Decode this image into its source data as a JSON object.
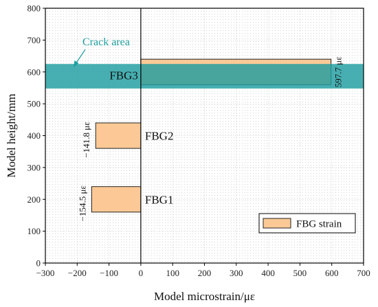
{
  "chart_data": {
    "type": "bar",
    "orientation": "horizontal",
    "xlabel": "Model microstrain/με",
    "ylabel": "Model height/mm",
    "xlim": [
      -300,
      700
    ],
    "ylim": [
      0,
      800
    ],
    "xticks": [
      -300,
      -200,
      -100,
      0,
      100,
      200,
      300,
      400,
      500,
      600,
      700
    ],
    "yticks": [
      0,
      100,
      200,
      300,
      400,
      500,
      600,
      700,
      800
    ],
    "grid": true,
    "bars": [
      {
        "label": "FBG1",
        "value": -154.5,
        "value_label": "−154.5 με",
        "y_range": [
          160,
          240
        ]
      },
      {
        "label": "FBG2",
        "value": -141.8,
        "value_label": "−141.8 με",
        "y_range": [
          360,
          440
        ]
      },
      {
        "label": "FBG3",
        "value": 597.7,
        "value_label": "597.7 με",
        "y_range": [
          560,
          640
        ]
      }
    ],
    "crack_band": {
      "label": "Crack area",
      "y_range": [
        548,
        625
      ],
      "color": "#1f9ea0"
    },
    "bar_color": "#fcc996",
    "legend": {
      "entries": [
        "FBG strain"
      ],
      "placement": "bottom-right"
    }
  }
}
